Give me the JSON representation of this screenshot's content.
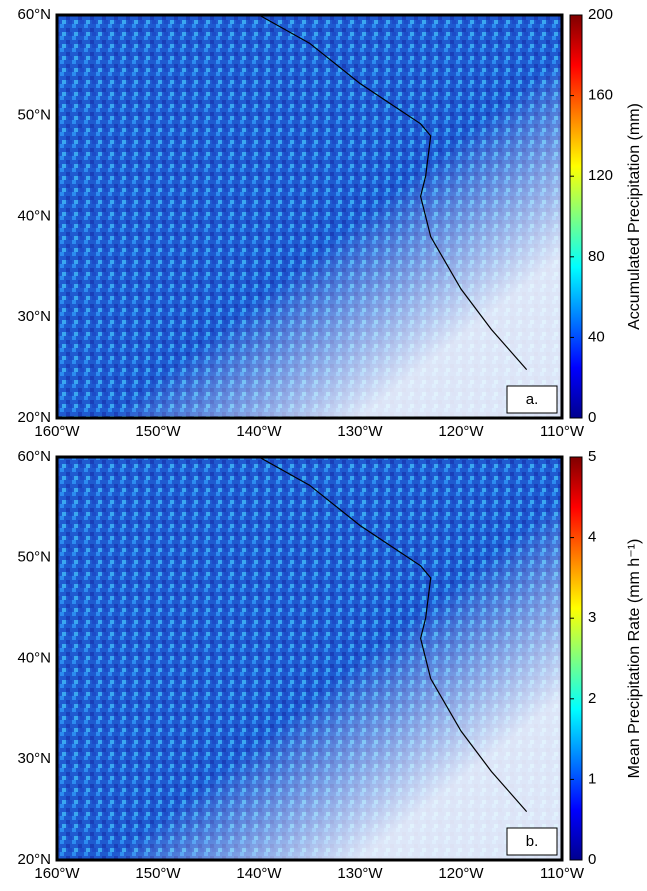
{
  "panels": [
    {
      "label": "a.",
      "lat_ticks": [
        "20°N",
        "30°N",
        "40°N",
        "50°N",
        "60°N"
      ],
      "lon_ticks": [
        "160°W",
        "150°W",
        "140°W",
        "130°W",
        "120°W",
        "110°W"
      ],
      "colorbar": {
        "title": "Accumulated Precipitation (mm)",
        "range": [
          0,
          200
        ],
        "ticks": [
          0,
          40,
          80,
          120,
          160,
          200
        ]
      }
    },
    {
      "label": "b.",
      "lat_ticks": [
        "20°N",
        "30°N",
        "40°N",
        "50°N",
        "60°N"
      ],
      "lon_ticks": [
        "160°W",
        "150°W",
        "140°W",
        "130°W",
        "120°W",
        "110°W"
      ],
      "colorbar": {
        "title": "Mean Precipitation Rate (mm h⁻¹)",
        "range": [
          0,
          5
        ],
        "ticks": [
          0,
          1,
          2,
          3,
          4,
          5
        ]
      }
    }
  ]
}
